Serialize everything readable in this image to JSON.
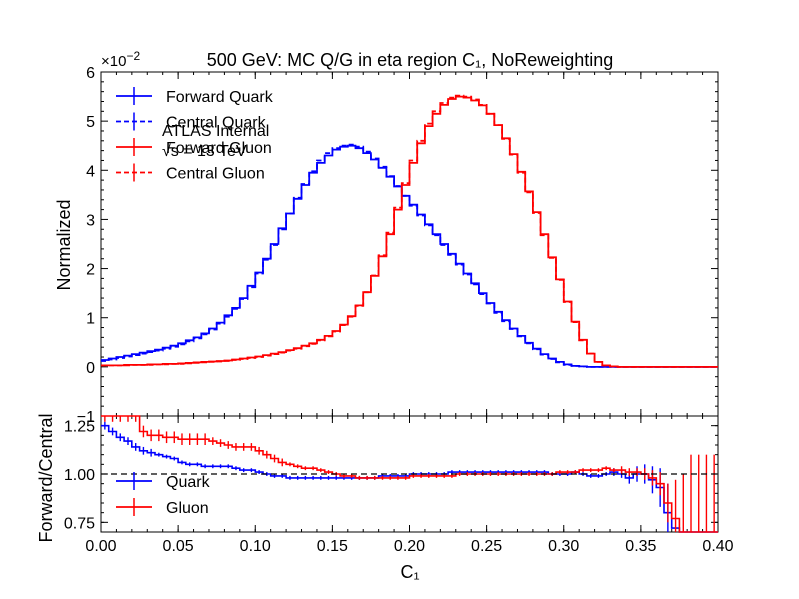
{
  "chart_data": {
    "type": "line",
    "title": "500 GeV: MC Q/G in eta region C₁, NoReweighting",
    "annotation": [
      "ATLAS Internal",
      "√s = 13 TeV"
    ],
    "top_panel": {
      "ylabel": "Normalized",
      "ylim": [
        -1,
        6
      ],
      "yticks": [
        "−1",
        "0",
        "1",
        "2",
        "3",
        "4",
        "5",
        "6"
      ],
      "yexponent_label": "×10",
      "yexponent_value": "−2",
      "legend": {
        "placement": "top-left",
        "entries": [
          {
            "label": "Forward Quark",
            "color": "#0000ff",
            "style": "solid"
          },
          {
            "label": "Central Quark",
            "color": "#0000ff",
            "style": "dashed"
          },
          {
            "label": "Forward Gluon",
            "color": "#ff0000",
            "style": "solid"
          },
          {
            "label": "Central Gluon",
            "color": "#ff0000",
            "style": "dashed"
          }
        ]
      },
      "bins_x": [
        0,
        0.005,
        0.01,
        0.015,
        0.02,
        0.025,
        0.03,
        0.035,
        0.04,
        0.045,
        0.05,
        0.055,
        0.06,
        0.065,
        0.07,
        0.075,
        0.08,
        0.085,
        0.09,
        0.095,
        0.1,
        0.105,
        0.11,
        0.115,
        0.12,
        0.125,
        0.13,
        0.135,
        0.14,
        0.145,
        0.15,
        0.155,
        0.16,
        0.165,
        0.17,
        0.175,
        0.18,
        0.185,
        0.19,
        0.195,
        0.2,
        0.205,
        0.21,
        0.215,
        0.22,
        0.225,
        0.23,
        0.235,
        0.24,
        0.245,
        0.25,
        0.255,
        0.26,
        0.265,
        0.27,
        0.275,
        0.28,
        0.285,
        0.29,
        0.295,
        0.3,
        0.305,
        0.31,
        0.315,
        0.32,
        0.325,
        0.33,
        0.335,
        0.34,
        0.345,
        0.35,
        0.355,
        0.36,
        0.365,
        0.37,
        0.375,
        0.38,
        0.385,
        0.39,
        0.395
      ],
      "series": [
        {
          "name": "Forward Quark",
          "color": "#0000ff",
          "dashed": false,
          "values": [
            0.14,
            0.17,
            0.2,
            0.23,
            0.26,
            0.29,
            0.32,
            0.35,
            0.39,
            0.43,
            0.48,
            0.54,
            0.6,
            0.68,
            0.78,
            0.9,
            1.05,
            1.2,
            1.4,
            1.65,
            1.92,
            2.2,
            2.5,
            2.82,
            3.12,
            3.42,
            3.7,
            3.95,
            4.15,
            4.3,
            4.42,
            4.48,
            4.5,
            4.45,
            4.35,
            4.22,
            4.05,
            3.87,
            3.67,
            3.48,
            3.3,
            3.1,
            2.9,
            2.7,
            2.5,
            2.3,
            2.1,
            1.9,
            1.7,
            1.5,
            1.3,
            1.12,
            0.95,
            0.78,
            0.63,
            0.49,
            0.37,
            0.26,
            0.17,
            0.1,
            0.05,
            0.02,
            0.01,
            0,
            0,
            0,
            0,
            0,
            0,
            0,
            0,
            0,
            0,
            0,
            0,
            0,
            0,
            0,
            0,
            0
          ]
        },
        {
          "name": "Central Quark",
          "color": "#0000ff",
          "dashed": true,
          "values": [
            0.12,
            0.15,
            0.18,
            0.21,
            0.24,
            0.27,
            0.3,
            0.33,
            0.37,
            0.41,
            0.46,
            0.52,
            0.58,
            0.66,
            0.76,
            0.88,
            1.02,
            1.18,
            1.38,
            1.62,
            1.9,
            2.18,
            2.48,
            2.8,
            3.12,
            3.44,
            3.72,
            3.98,
            4.2,
            4.35,
            4.45,
            4.5,
            4.52,
            4.48,
            4.38,
            4.24,
            4.07,
            3.88,
            3.68,
            3.48,
            3.28,
            3.08,
            2.88,
            2.68,
            2.48,
            2.28,
            2.08,
            1.88,
            1.68,
            1.48,
            1.29,
            1.1,
            0.93,
            0.77,
            0.62,
            0.48,
            0.36,
            0.25,
            0.16,
            0.09,
            0.04,
            0.02,
            0.01,
            0,
            0,
            0,
            0,
            0,
            0,
            0,
            0,
            0,
            0,
            0,
            0,
            0,
            0,
            0,
            0,
            0
          ]
        },
        {
          "name": "Forward Gluon",
          "color": "#ff0000",
          "dashed": false,
          "values": [
            0.03,
            0.03,
            0.03,
            0.04,
            0.04,
            0.04,
            0.05,
            0.05,
            0.06,
            0.06,
            0.07,
            0.08,
            0.09,
            0.1,
            0.11,
            0.12,
            0.13,
            0.15,
            0.17,
            0.19,
            0.21,
            0.24,
            0.27,
            0.3,
            0.34,
            0.38,
            0.43,
            0.48,
            0.55,
            0.63,
            0.73,
            0.86,
            1.03,
            1.25,
            1.52,
            1.85,
            2.25,
            2.7,
            3.2,
            3.7,
            4.15,
            4.55,
            4.9,
            5.15,
            5.33,
            5.45,
            5.5,
            5.48,
            5.42,
            5.32,
            5.15,
            4.92,
            4.65,
            4.33,
            3.97,
            3.57,
            3.15,
            2.7,
            2.23,
            1.78,
            1.33,
            0.92,
            0.55,
            0.27,
            0.1,
            0.03,
            0.01,
            0,
            0,
            0,
            0,
            0,
            0,
            0,
            0,
            0,
            0,
            0,
            0,
            0
          ]
        },
        {
          "name": "Central Gluon",
          "color": "#ff0000",
          "dashed": true,
          "values": [
            0.03,
            0.03,
            0.03,
            0.03,
            0.04,
            0.04,
            0.04,
            0.05,
            0.05,
            0.06,
            0.06,
            0.07,
            0.08,
            0.09,
            0.1,
            0.11,
            0.12,
            0.14,
            0.16,
            0.18,
            0.2,
            0.23,
            0.26,
            0.29,
            0.33,
            0.37,
            0.42,
            0.47,
            0.54,
            0.62,
            0.72,
            0.85,
            1.02,
            1.24,
            1.52,
            1.86,
            2.27,
            2.73,
            3.24,
            3.74,
            4.2,
            4.6,
            4.95,
            5.2,
            5.37,
            5.48,
            5.52,
            5.5,
            5.44,
            5.33,
            5.15,
            4.92,
            4.64,
            4.32,
            3.95,
            3.55,
            3.13,
            2.68,
            2.22,
            1.77,
            1.32,
            0.91,
            0.54,
            0.27,
            0.1,
            0.03,
            0.01,
            0,
            0,
            0,
            0,
            0,
            0,
            0,
            0,
            0,
            0,
            0,
            0,
            0
          ]
        }
      ]
    },
    "bottom_panel": {
      "ylabel": "Forward/Central",
      "xlabel": "C₁",
      "xlim": [
        0.0,
        0.4
      ],
      "ylim": [
        0.7,
        1.3
      ],
      "xticks": [
        "0.00",
        "0.05",
        "0.10",
        "0.15",
        "0.20",
        "0.25",
        "0.30",
        "0.35",
        "0.40"
      ],
      "yticks": [
        "0.75",
        "1.00",
        "1.25"
      ],
      "reference_line": 1.0,
      "legend": {
        "placement": "lower-left",
        "entries": [
          {
            "label": "Quark",
            "color": "#0000ff"
          },
          {
            "label": "Gluon",
            "color": "#ff0000"
          }
        ]
      },
      "series": [
        {
          "name": "Quark",
          "color": "#0000ff",
          "values": [
            1.25,
            1.22,
            1.19,
            1.17,
            1.14,
            1.12,
            1.11,
            1.1,
            1.09,
            1.08,
            1.06,
            1.05,
            1.05,
            1.04,
            1.04,
            1.04,
            1.04,
            1.03,
            1.02,
            1.02,
            1.01,
            1.0,
            0.99,
            0.99,
            0.98,
            0.98,
            0.98,
            0.98,
            0.98,
            0.98,
            0.98,
            0.98,
            0.98,
            0.98,
            0.98,
            0.98,
            0.99,
            0.99,
            0.99,
            0.99,
            1.0,
            1.0,
            1.0,
            1.0,
            1.0,
            1.01,
            1.01,
            1.01,
            1.01,
            1.01,
            1.01,
            1.01,
            1.01,
            1.01,
            1.01,
            1.01,
            1.01,
            1.01,
            1.0,
            1.0,
            1.0,
            1.01,
            1.0,
            0.99,
            0.99,
            1.0,
            1.01,
            1.0,
            0.98,
            1.0,
            1.0,
            0.97,
            0.93,
            0.8,
            0.72,
            0.7,
            0.7,
            0.7,
            0.7,
            0.7
          ],
          "errors": [
            0.02,
            0.02,
            0.02,
            0.02,
            0.02,
            0.02,
            0.02,
            0.01,
            0.01,
            0.01,
            0.01,
            0.01,
            0.01,
            0.01,
            0.01,
            0.01,
            0.01,
            0.01,
            0.01,
            0.01,
            0.01,
            0.01,
            0.01,
            0.01,
            0.01,
            0.01,
            0.01,
            0.01,
            0.01,
            0.01,
            0.01,
            0.01,
            0.01,
            0.01,
            0.01,
            0.01,
            0.01,
            0.01,
            0.01,
            0.01,
            0.01,
            0.01,
            0.01,
            0.01,
            0.01,
            0.01,
            0.01,
            0.01,
            0.01,
            0.01,
            0.01,
            0.01,
            0.01,
            0.01,
            0.01,
            0.01,
            0.01,
            0.01,
            0.01,
            0.01,
            0.01,
            0.01,
            0.01,
            0.01,
            0.01,
            0.01,
            0.02,
            0.02,
            0.03,
            0.04,
            0.05,
            0.07,
            0.1,
            0.15,
            0.0,
            0.0,
            0.0,
            0.0,
            0.0,
            0.0
          ]
        },
        {
          "name": "Gluon",
          "color": "#ff0000",
          "values": [
            1.3,
            1.3,
            1.3,
            1.3,
            1.3,
            1.22,
            1.2,
            1.2,
            1.19,
            1.19,
            1.18,
            1.18,
            1.18,
            1.18,
            1.17,
            1.16,
            1.15,
            1.14,
            1.14,
            1.14,
            1.12,
            1.1,
            1.08,
            1.06,
            1.05,
            1.04,
            1.03,
            1.03,
            1.02,
            1.01,
            1.0,
            0.99,
            0.99,
            0.98,
            0.98,
            0.98,
            0.98,
            0.98,
            0.98,
            0.98,
            0.99,
            0.99,
            0.99,
            0.99,
            0.99,
            0.99,
            1.0,
            1.0,
            1.0,
            1.0,
            1.0,
            1.0,
            1.0,
            1.0,
            1.0,
            1.0,
            1.0,
            1.0,
            1.0,
            1.01,
            1.01,
            1.01,
            1.02,
            1.02,
            1.02,
            1.03,
            1.02,
            1.02,
            1.01,
            1.01,
            1.0,
            0.98,
            0.95,
            0.85,
            0.77,
            0.7,
            0.7,
            0.7,
            0.7,
            0.7
          ],
          "errors": [
            0.03,
            0.03,
            0.03,
            0.03,
            0.03,
            0.03,
            0.03,
            0.03,
            0.03,
            0.03,
            0.03,
            0.03,
            0.03,
            0.03,
            0.02,
            0.02,
            0.02,
            0.02,
            0.02,
            0.02,
            0.02,
            0.02,
            0.02,
            0.02,
            0.01,
            0.01,
            0.01,
            0.01,
            0.01,
            0.01,
            0.01,
            0.01,
            0.01,
            0.01,
            0.01,
            0.01,
            0.01,
            0.01,
            0.01,
            0.01,
            0.01,
            0.01,
            0.01,
            0.01,
            0.01,
            0.01,
            0.01,
            0.01,
            0.01,
            0.01,
            0.01,
            0.01,
            0.01,
            0.01,
            0.01,
            0.01,
            0.01,
            0.01,
            0.01,
            0.01,
            0.01,
            0.01,
            0.01,
            0.01,
            0.01,
            0.01,
            0.01,
            0.02,
            0.02,
            0.02,
            0.03,
            0.04,
            0.06,
            0.1,
            0.2,
            0.3,
            0.4,
            0.4,
            0.4,
            0.4
          ]
        }
      ]
    }
  }
}
